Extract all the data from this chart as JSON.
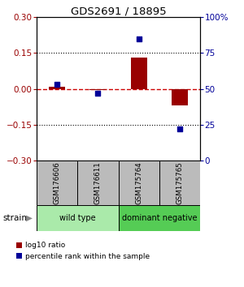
{
  "title": "GDS2691 / 18895",
  "samples": [
    "GSM176606",
    "GSM176611",
    "GSM175764",
    "GSM175765"
  ],
  "log10_ratio": [
    0.01,
    -0.005,
    0.13,
    -0.07
  ],
  "percentile_rank": [
    53,
    47,
    85,
    22
  ],
  "groups": [
    {
      "label": "wild type",
      "samples": [
        0,
        1
      ],
      "color": "#aaeaaa"
    },
    {
      "label": "dominant negative",
      "samples": [
        2,
        3
      ],
      "color": "#55cc55"
    }
  ],
  "group_label": "strain",
  "ylim_left": [
    -0.3,
    0.3
  ],
  "ylim_right": [
    0,
    100
  ],
  "yticks_left": [
    -0.3,
    -0.15,
    0,
    0.15,
    0.3
  ],
  "yticks_right": [
    0,
    25,
    50,
    75,
    100
  ],
  "bar_color": "#990000",
  "dot_color": "#000099",
  "hline_color": "#cc0000",
  "grid_color": "#000000",
  "plot_bg": "#ffffff",
  "sample_bg": "#bbbbbb"
}
